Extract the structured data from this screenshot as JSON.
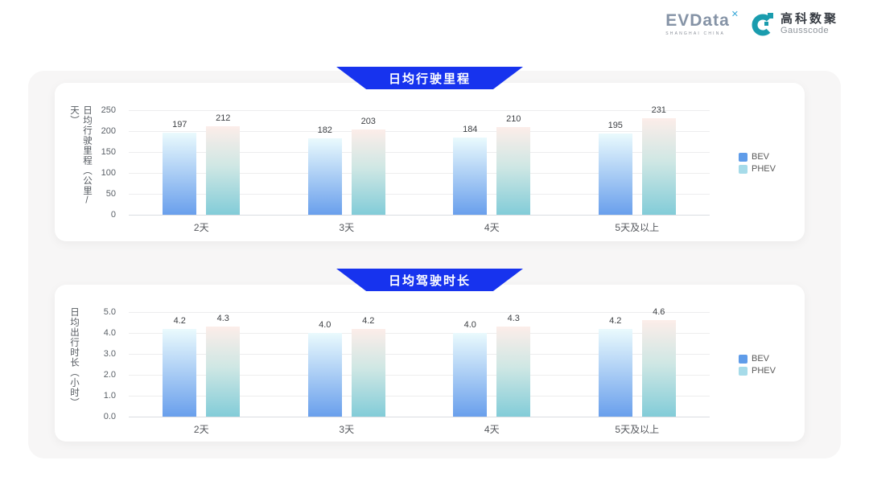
{
  "brand": {
    "evdata": {
      "name": "EVData",
      "mark": "✕",
      "subtitle": "SHANGHAI CHINA"
    },
    "gausscode": {
      "cn": "高科数聚",
      "en": "Gausscode"
    }
  },
  "colors": {
    "banner_blue": "#1733ee",
    "bev_gradient_top": "#eafafd",
    "bev_gradient_bottom": "#699fec",
    "phev_gradient_top": "#fcede9",
    "phev_gradient_bottom": "#82ccd8",
    "legend_bev": "#5f9ce9",
    "legend_phev": "#a6dbe9",
    "gausscode_teal": "#1a9cae"
  },
  "chart_data": [
    {
      "type": "bar",
      "title": "日均行驶里程",
      "ylabel": "日均行驶里程（公里/天）",
      "xlabel": "",
      "categories": [
        "2天",
        "3天",
        "4天",
        "5天及以上"
      ],
      "series": [
        {
          "name": "BEV",
          "values": [
            197,
            182,
            184,
            195
          ],
          "labels": [
            "197",
            "182",
            "184",
            "195"
          ]
        },
        {
          "name": "PHEV",
          "values": [
            212,
            203,
            210,
            231
          ],
          "labels": [
            "212",
            "203",
            "210",
            "231"
          ]
        }
      ],
      "ylim": [
        0,
        250
      ],
      "yticks": [
        "250",
        "200",
        "150",
        "100",
        "50",
        "0"
      ],
      "grid": true,
      "legend": [
        "BEV",
        "PHEV"
      ],
      "legend_position": "right"
    },
    {
      "type": "bar",
      "title": "日均驾驶时长",
      "ylabel": "日均出行时长（小时）",
      "xlabel": "",
      "categories": [
        "2天",
        "3天",
        "4天",
        "5天及以上"
      ],
      "series": [
        {
          "name": "BEV",
          "values": [
            4.2,
            4.0,
            4.0,
            4.2
          ],
          "labels": [
            "4.2",
            "4.0",
            "4.0",
            "4.2"
          ]
        },
        {
          "name": "PHEV",
          "values": [
            4.3,
            4.2,
            4.3,
            4.6
          ],
          "labels": [
            "4.3",
            "4.2",
            "4.3",
            "4.6"
          ]
        }
      ],
      "ylim": [
        0,
        5.0
      ],
      "yticks": [
        "5.0",
        "4.0",
        "3.0",
        "2.0",
        "1.0",
        "0.0"
      ],
      "grid": true,
      "legend": [
        "BEV",
        "PHEV"
      ],
      "legend_position": "right"
    }
  ]
}
